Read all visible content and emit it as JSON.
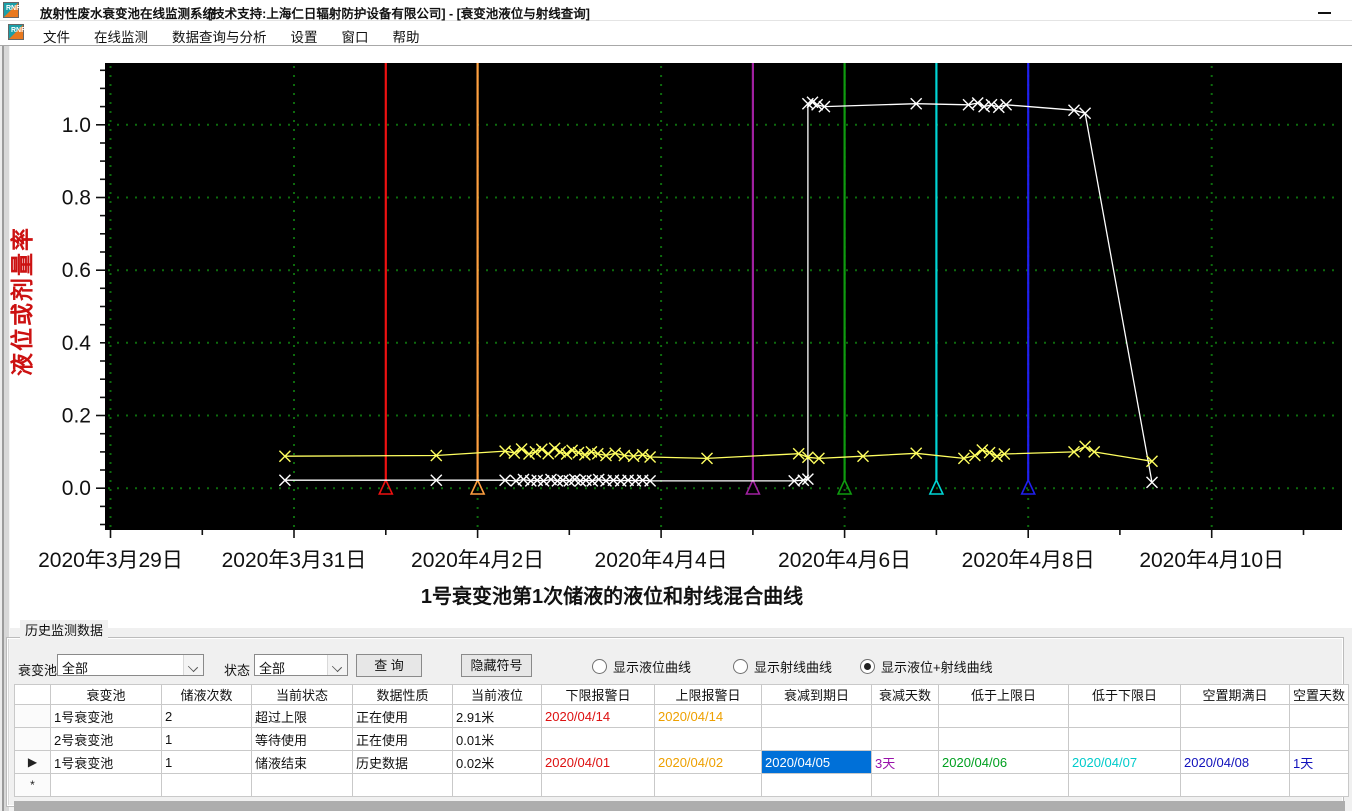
{
  "window": {
    "title": "放射性废水衰变池在线监测系统",
    "subtitle": "[技术支持:上海仁日辐射防护设备有限公司] - [衰变池液位与射线查询]",
    "logo_text": "RNRi"
  },
  "menu": {
    "items": [
      "文件",
      "在线监测",
      "数据查询与分析",
      "设置",
      "窗口",
      "帮助"
    ]
  },
  "chart_data": {
    "type": "line",
    "title": "1号衰变池第1次储液的液位和射线混合曲线",
    "ylabel": "液位或剂量率",
    "x_tick_labels": [
      "2020年3月29日",
      "2020年3月31日",
      "2020年4月2日",
      "2020年4月4日",
      "2020年4月6日",
      "2020年4月8日",
      "2020年4月10日"
    ],
    "x_tick_days": [
      0,
      2,
      4,
      6,
      8,
      10,
      12
    ],
    "y_ticks": [
      0.0,
      0.2,
      0.4,
      0.6,
      0.8,
      1.0
    ],
    "y_tick_labels": [
      "0.0",
      "0.2",
      "0.4",
      "0.6",
      "0.8",
      "1.0"
    ],
    "xlim_days": [
      -0.06,
      13.42
    ],
    "ylim": [
      -0.115,
      1.17
    ],
    "background": "#000000",
    "grid_color": "#0d6b0d",
    "axis_label_color": "#cc1111",
    "series": [
      {
        "name": "液位",
        "color": "#ffffff",
        "marker": "x",
        "points": [
          [
            1.9,
            0.022
          ],
          [
            3.55,
            0.022
          ],
          [
            4.3,
            0.022
          ],
          [
            4.42,
            0.02
          ],
          [
            4.5,
            0.024
          ],
          [
            4.58,
            0.02
          ],
          [
            4.65,
            0.022
          ],
          [
            4.72,
            0.02
          ],
          [
            4.8,
            0.024
          ],
          [
            4.87,
            0.02
          ],
          [
            4.93,
            0.022
          ],
          [
            5.0,
            0.02
          ],
          [
            5.06,
            0.024
          ],
          [
            5.12,
            0.02
          ],
          [
            5.18,
            0.022
          ],
          [
            5.25,
            0.02
          ],
          [
            5.32,
            0.024
          ],
          [
            5.4,
            0.02
          ],
          [
            5.48,
            0.022
          ],
          [
            5.56,
            0.02
          ],
          [
            5.64,
            0.022
          ],
          [
            5.72,
            0.02
          ],
          [
            5.8,
            0.022
          ],
          [
            5.88,
            0.02
          ],
          [
            7.45,
            0.02
          ],
          [
            7.55,
            0.022
          ],
          [
            7.6,
            0.025
          ],
          [
            7.6,
            1.058
          ],
          [
            7.65,
            1.062
          ],
          [
            7.7,
            1.055
          ],
          [
            7.78,
            1.05
          ],
          [
            8.78,
            1.058
          ],
          [
            9.35,
            1.055
          ],
          [
            9.45,
            1.06
          ],
          [
            9.52,
            1.05
          ],
          [
            9.6,
            1.055
          ],
          [
            9.68,
            1.048
          ],
          [
            9.76,
            1.055
          ],
          [
            10.5,
            1.04
          ],
          [
            10.62,
            1.032
          ],
          [
            11.35,
            0.016
          ]
        ]
      },
      {
        "name": "射线",
        "color": "#ffff60",
        "marker": "x",
        "points": [
          [
            1.9,
            0.088
          ],
          [
            3.55,
            0.09
          ],
          [
            4.3,
            0.102
          ],
          [
            4.4,
            0.097
          ],
          [
            4.48,
            0.108
          ],
          [
            4.56,
            0.094
          ],
          [
            4.63,
            0.1
          ],
          [
            4.7,
            0.107
          ],
          [
            4.77,
            0.095
          ],
          [
            4.84,
            0.11
          ],
          [
            4.9,
            0.1
          ],
          [
            4.97,
            0.094
          ],
          [
            5.03,
            0.104
          ],
          [
            5.1,
            0.098
          ],
          [
            5.17,
            0.092
          ],
          [
            5.24,
            0.1
          ],
          [
            5.31,
            0.095
          ],
          [
            5.4,
            0.09
          ],
          [
            5.5,
            0.096
          ],
          [
            5.6,
            0.09
          ],
          [
            5.7,
            0.088
          ],
          [
            5.8,
            0.092
          ],
          [
            5.88,
            0.086
          ],
          [
            6.5,
            0.082
          ],
          [
            7.5,
            0.095
          ],
          [
            7.6,
            0.085
          ],
          [
            7.72,
            0.082
          ],
          [
            8.2,
            0.088
          ],
          [
            8.78,
            0.096
          ],
          [
            9.3,
            0.082
          ],
          [
            9.42,
            0.09
          ],
          [
            9.5,
            0.105
          ],
          [
            9.58,
            0.098
          ],
          [
            9.66,
            0.088
          ],
          [
            9.74,
            0.094
          ],
          [
            10.5,
            0.1
          ],
          [
            10.62,
            0.115
          ],
          [
            10.72,
            0.1
          ],
          [
            11.35,
            0.074
          ]
        ]
      }
    ],
    "event_lines": [
      {
        "label": "下限报警日",
        "date": "2020/04/01",
        "day": 3,
        "color": "#ee1111"
      },
      {
        "label": "上限报警日",
        "date": "2020/04/02",
        "day": 4,
        "color": "#ffa040"
      },
      {
        "label": "衰减到期日",
        "date": "2020/04/05",
        "day": 7,
        "color": "#a020a0"
      },
      {
        "label": "低于上限日",
        "date": "2020/04/06",
        "day": 8,
        "color": "#0f9b0f"
      },
      {
        "label": "低于下限日",
        "date": "2020/04/07",
        "day": 9,
        "color": "#00d5d5"
      },
      {
        "label": "空置期满日",
        "date": "2020/04/08",
        "day": 10,
        "color": "#2020ee"
      }
    ]
  },
  "panel": {
    "title": "历史监测数据",
    "pool_label": "衰变池",
    "pool_value": "全部",
    "status_label": "状态",
    "status_value": "全部",
    "query_button": "查 询",
    "hide_button": "隐藏符号",
    "radios": [
      {
        "label": "显示液位曲线",
        "checked": false
      },
      {
        "label": "显示射线曲线",
        "checked": false
      },
      {
        "label": "显示液位+射线曲线",
        "checked": true
      }
    ]
  },
  "table": {
    "columns": [
      "衰变池",
      "储液次数",
      "当前状态",
      "数据性质",
      "当前液位",
      "下限报警日",
      "上限报警日",
      "衰减到期日",
      "衰减天数",
      "低于上限日",
      "低于下限日",
      "空置期满日",
      "空置天数"
    ],
    "value_colors": {
      "red": "#dd1111",
      "orange": "#eea000",
      "purple": "#9911aa",
      "green": "#00a020",
      "cyan": "#00cbcb",
      "navy": "#1111bb",
      "selected_bg": "#0070d8",
      "selected_text": "#ffffff"
    },
    "rows": [
      {
        "marker": "",
        "cells": [
          "1号衰变池",
          "2",
          "超过上限",
          "正在使用",
          "2.91米",
          [
            "2020/04/14",
            "red"
          ],
          [
            "2020/04/14",
            "orange"
          ],
          "",
          "",
          "",
          "",
          "",
          ""
        ]
      },
      {
        "marker": "",
        "cells": [
          "2号衰变池",
          "1",
          "等待使用",
          "正在使用",
          "0.01米",
          "",
          "",
          "",
          "",
          "",
          "",
          "",
          ""
        ]
      },
      {
        "marker": "▶",
        "cells": [
          "1号衰变池",
          "1",
          "储液结束",
          "历史数据",
          "0.02米",
          [
            "2020/04/01",
            "red"
          ],
          [
            "2020/04/02",
            "orange"
          ],
          [
            "2020/04/05",
            "selected"
          ],
          [
            "3天",
            "purple"
          ],
          [
            "2020/04/06",
            "green"
          ],
          [
            "2020/04/07",
            "cyan"
          ],
          [
            "2020/04/08",
            "navy"
          ],
          [
            "1天",
            "navy"
          ]
        ]
      },
      {
        "marker": "*",
        "cells": [
          "",
          "",
          "",
          "",
          "",
          "",
          "",
          "",
          "",
          "",
          "",
          "",
          ""
        ]
      }
    ]
  }
}
